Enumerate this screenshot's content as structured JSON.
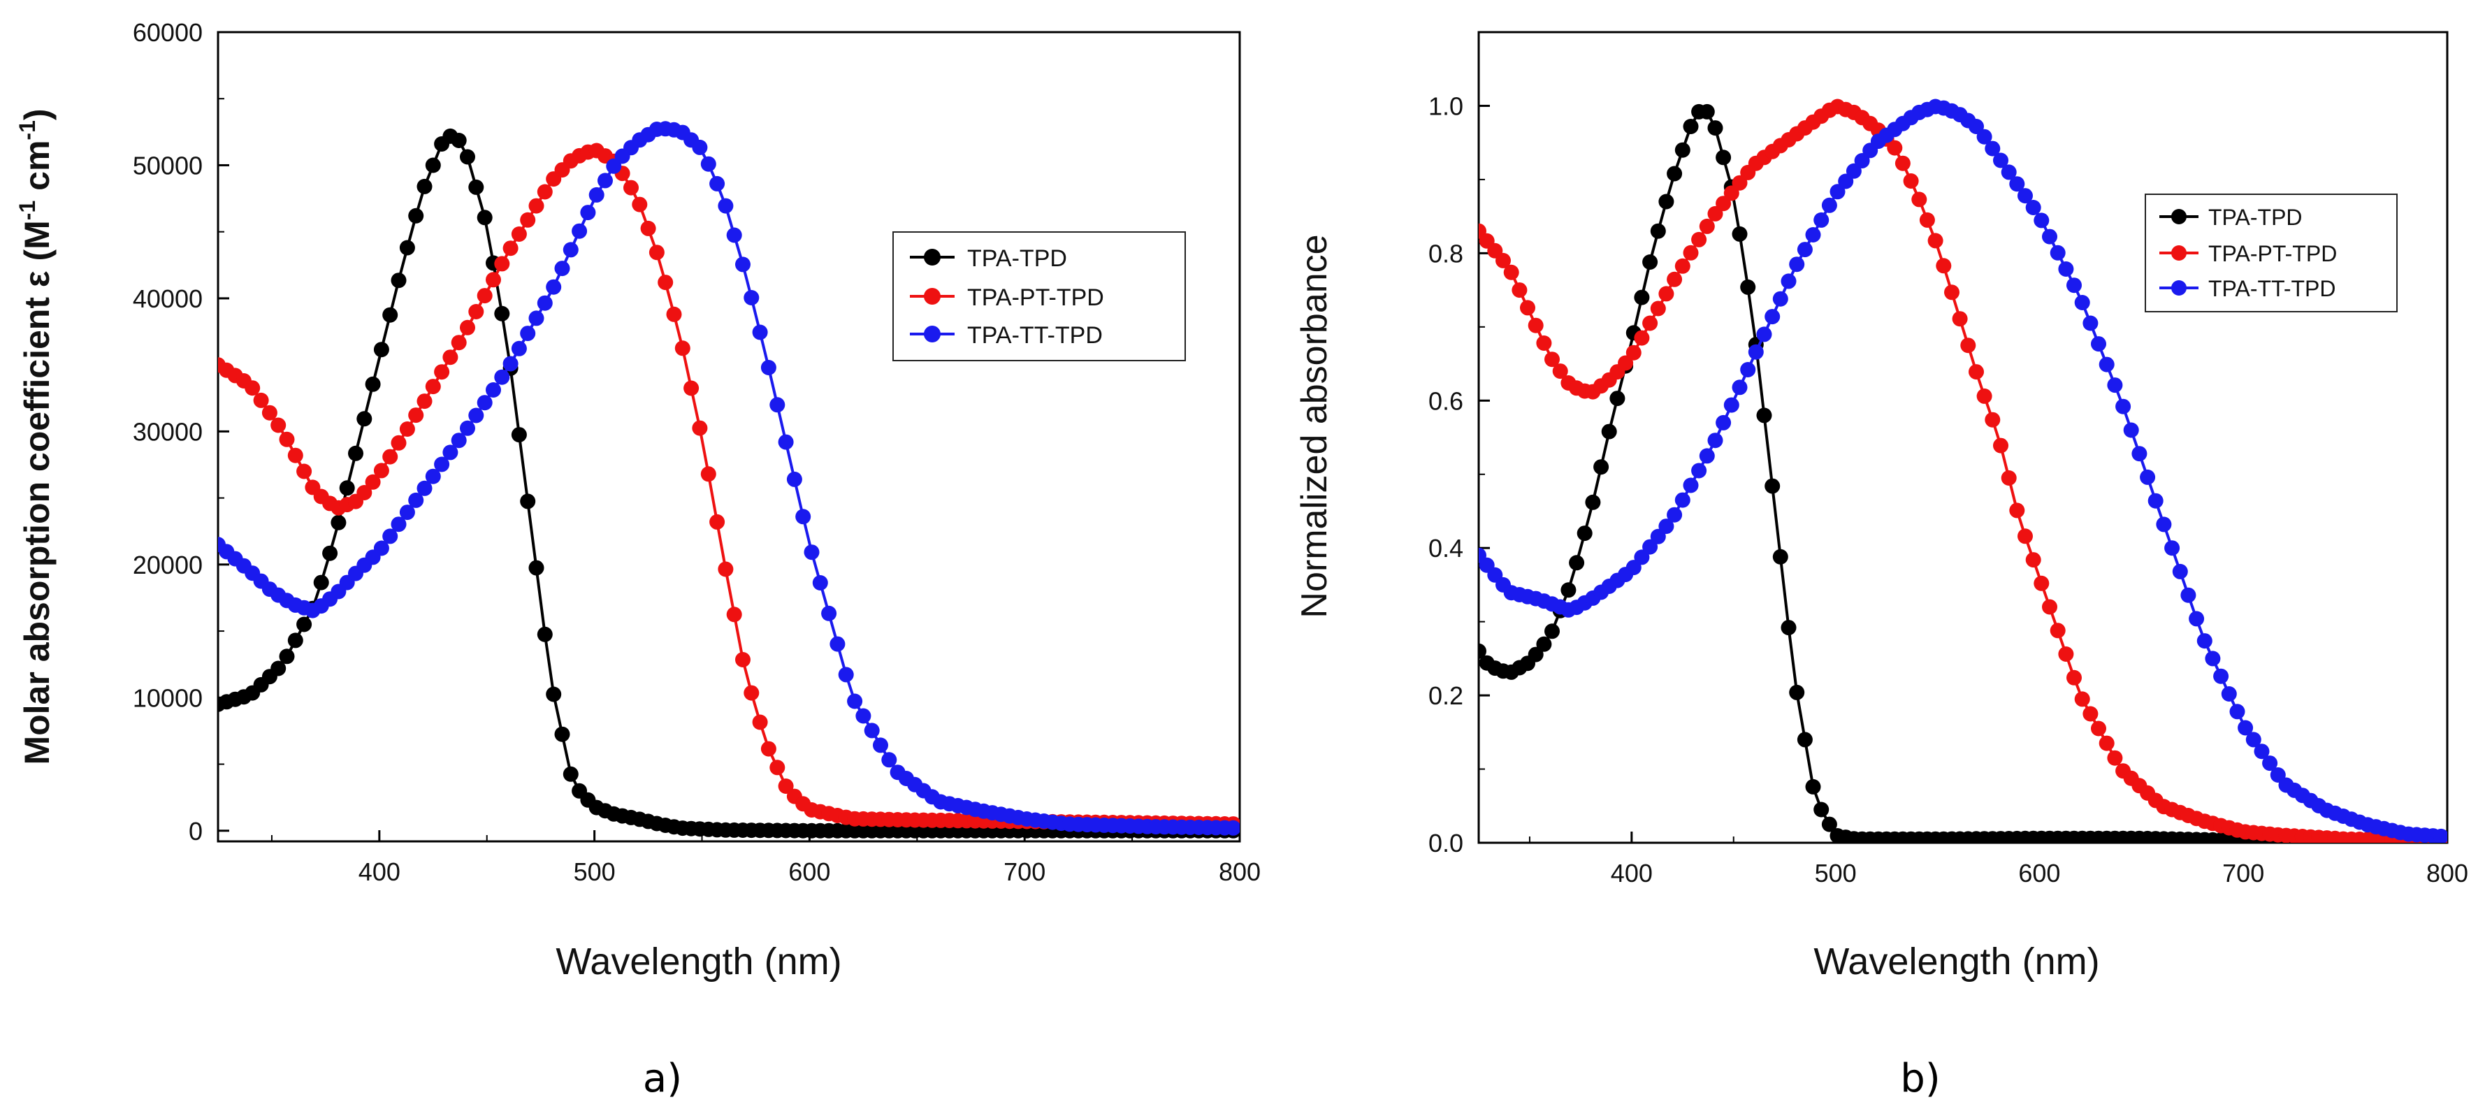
{
  "chart_data": [
    {
      "type": "line",
      "panel": "a)",
      "xlabel": "Wavelength (nm)",
      "ylabel": "Molar absorption coefficient  ε (M-1 cm-1)",
      "ylabel_parts": {
        "main": "Molar absorption coefficient  ε (M",
        "sup1": "-1",
        "mid": " cm",
        "sup2": "-1",
        "end": ")"
      },
      "xlim": [
        325,
        800
      ],
      "ylim": [
        -800,
        60000
      ],
      "xticks": [
        400,
        500,
        600,
        700,
        800
      ],
      "yticks": [
        0,
        10000,
        20000,
        30000,
        40000,
        50000,
        60000
      ],
      "xtick_labels": [
        "400",
        "500",
        "600",
        "700",
        "800"
      ],
      "ytick_labels": [
        "0",
        "10000",
        "20000",
        "30000",
        "40000",
        "50000",
        "60000"
      ],
      "legend": [
        "TPA-TPD",
        "TPA-PT-TPD",
        "TPA-TT-TPD"
      ],
      "legend_position": "center-right",
      "series": [
        {
          "name": "TPA-TPD",
          "color": "#000000",
          "x": [
            325,
            340,
            355,
            370,
            380,
            390,
            400,
            410,
            420,
            430,
            435,
            440,
            450,
            460,
            470,
            480,
            490,
            500,
            510,
            520,
            530,
            540,
            560,
            600,
            700,
            800
          ],
          "y": [
            9500,
            10200,
            12500,
            17000,
            22500,
            29000,
            35500,
            42000,
            48000,
            52000,
            52300,
            51200,
            45500,
            36000,
            23500,
            11000,
            3500,
            1800,
            1200,
            900,
            500,
            200,
            50,
            0,
            0,
            0
          ]
        },
        {
          "name": "TPA-PT-TPD",
          "color": "#ee1111",
          "x": [
            325,
            340,
            355,
            370,
            380,
            390,
            400,
            420,
            440,
            460,
            480,
            490,
            500,
            510,
            520,
            530,
            540,
            550,
            560,
            570,
            580,
            590,
            600,
            620,
            650,
            700,
            800
          ],
          "y": [
            35000,
            33500,
            30000,
            25500,
            24200,
            24800,
            26800,
            32000,
            37500,
            43500,
            48800,
            50500,
            51200,
            50200,
            47500,
            43000,
            37000,
            29500,
            20500,
            12000,
            6500,
            3000,
            1600,
            900,
            800,
            700,
            500
          ]
        },
        {
          "name": "TPA-TT-TPD",
          "color": "#1a1aee",
          "x": [
            325,
            340,
            350,
            360,
            370,
            380,
            390,
            400,
            420,
            440,
            460,
            480,
            500,
            510,
            520,
            530,
            540,
            550,
            560,
            570,
            580,
            600,
            620,
            640,
            660,
            680,
            700,
            720,
            760,
            800
          ],
          "y": [
            21500,
            19500,
            18000,
            17000,
            16500,
            17800,
            19500,
            21000,
            25500,
            30000,
            34800,
            40500,
            47500,
            50200,
            51800,
            52800,
            52600,
            51200,
            47500,
            42000,
            35500,
            21500,
            10000,
            4500,
            2200,
            1500,
            900,
            500,
            300,
            200
          ]
        }
      ]
    },
    {
      "type": "line",
      "panel": "b)",
      "xlabel": "Wavelength (nm)",
      "ylabel": "Normalized absorbance",
      "xlim": [
        325,
        800
      ],
      "ylim": [
        0,
        1.1
      ],
      "xticks": [
        400,
        500,
        600,
        700,
        800
      ],
      "yticks": [
        0.0,
        0.2,
        0.4,
        0.6,
        0.8,
        1.0
      ],
      "xtick_labels": [
        "400",
        "500",
        "600",
        "700",
        "800"
      ],
      "ytick_labels": [
        "0.0",
        "0.2",
        "0.4",
        "0.6",
        "0.8",
        "1.0"
      ],
      "legend": [
        "TPA-TPD",
        "TPA-PT-TPD",
        "TPA-TT-TPD"
      ],
      "legend_position": "top-right",
      "series": [
        {
          "name": "TPA-TPD",
          "color": "#000000",
          "x": [
            325,
            330,
            340,
            350,
            360,
            370,
            380,
            390,
            400,
            410,
            420,
            430,
            435,
            440,
            450,
            460,
            470,
            480,
            490,
            500,
            510,
            520,
            550,
            600,
            650,
            700,
            800
          ],
          "y": [
            0.26,
            0.24,
            0.23,
            0.245,
            0.28,
            0.35,
            0.45,
            0.57,
            0.68,
            0.8,
            0.9,
            0.98,
            1.0,
            0.98,
            0.88,
            0.7,
            0.46,
            0.22,
            0.06,
            0.01,
            0.005,
            0.005,
            0.005,
            0.006,
            0.006,
            0.003,
            0.0
          ]
        },
        {
          "name": "TPA-PT-TPD",
          "color": "#ee1111",
          "x": [
            325,
            340,
            350,
            360,
            370,
            380,
            390,
            400,
            420,
            440,
            460,
            480,
            500,
            510,
            520,
            530,
            540,
            550,
            560,
            570,
            580,
            590,
            600,
            620,
            640,
            660,
            680,
            700,
            720,
            750,
            800
          ],
          "y": [
            0.83,
            0.78,
            0.72,
            0.66,
            0.62,
            0.61,
            0.63,
            0.66,
            0.76,
            0.85,
            0.92,
            0.96,
            1.0,
            0.99,
            0.97,
            0.94,
            0.88,
            0.81,
            0.72,
            0.63,
            0.55,
            0.44,
            0.36,
            0.2,
            0.1,
            0.05,
            0.03,
            0.015,
            0.01,
            0.005,
            0.003
          ]
        },
        {
          "name": "TPA-TT-TPD",
          "color": "#1a1aee",
          "x": [
            325,
            340,
            355,
            370,
            380,
            390,
            400,
            420,
            440,
            460,
            480,
            500,
            520,
            540,
            550,
            560,
            570,
            580,
            600,
            620,
            640,
            660,
            680,
            700,
            720,
            740,
            760,
            780,
            800
          ],
          "y": [
            0.39,
            0.34,
            0.33,
            0.315,
            0.33,
            0.35,
            0.37,
            0.44,
            0.54,
            0.66,
            0.78,
            0.88,
            0.95,
            0.99,
            1.0,
            0.99,
            0.97,
            0.93,
            0.85,
            0.74,
            0.6,
            0.44,
            0.28,
            0.16,
            0.08,
            0.045,
            0.025,
            0.012,
            0.008
          ]
        }
      ]
    }
  ]
}
